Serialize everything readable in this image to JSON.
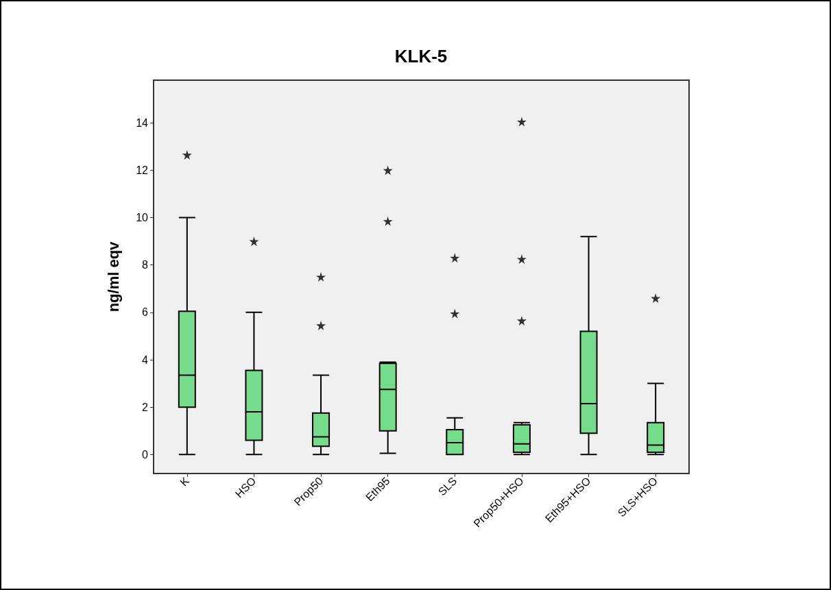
{
  "chart_data": {
    "type": "box",
    "title": "KLK-5",
    "ylabel": "ng/ml eqv",
    "categories": [
      "K",
      "HSO",
      "Prop50",
      "Eth95",
      "SLS",
      "Prop50+HSO",
      "Eth95+HSO",
      "SLS+HSO"
    ],
    "boxes": [
      {
        "low": 0,
        "q1": 2.0,
        "median": 3.35,
        "q3": 6.05,
        "high": 10,
        "outliers": [
          12.65
        ]
      },
      {
        "low": 0,
        "q1": 0.6,
        "median": 1.8,
        "q3": 3.55,
        "high": 6.0,
        "outliers": [
          9.0
        ]
      },
      {
        "low": 0,
        "q1": 0.35,
        "median": 0.75,
        "q3": 1.75,
        "high": 3.35,
        "outliers": [
          5.45,
          7.5
        ]
      },
      {
        "low": 0.05,
        "q1": 1.0,
        "median": 2.75,
        "q3": 3.85,
        "high": 3.9,
        "outliers": [
          9.85,
          12.0
        ]
      },
      {
        "low": 0,
        "q1": 0,
        "median": 0.5,
        "q3": 1.05,
        "high": 1.55,
        "outliers": [
          5.95,
          8.3
        ]
      },
      {
        "low": 0,
        "q1": 0.1,
        "median": 0.45,
        "q3": 1.25,
        "high": 1.35,
        "outliers": [
          5.65,
          8.25,
          14.05
        ]
      },
      {
        "low": 0,
        "q1": 0.9,
        "median": 2.15,
        "q3": 5.2,
        "high": 9.2
      },
      {
        "low": 0,
        "q1": 0.1,
        "median": 0.4,
        "q3": 1.35,
        "high": 3.0,
        "outliers": [
          6.6
        ]
      }
    ],
    "color": "#74dc8a",
    "ylim": [
      -0.8,
      15.8
    ],
    "yticks": [
      0,
      2,
      4,
      6,
      8,
      10,
      12,
      14
    ],
    "marker": "star"
  }
}
